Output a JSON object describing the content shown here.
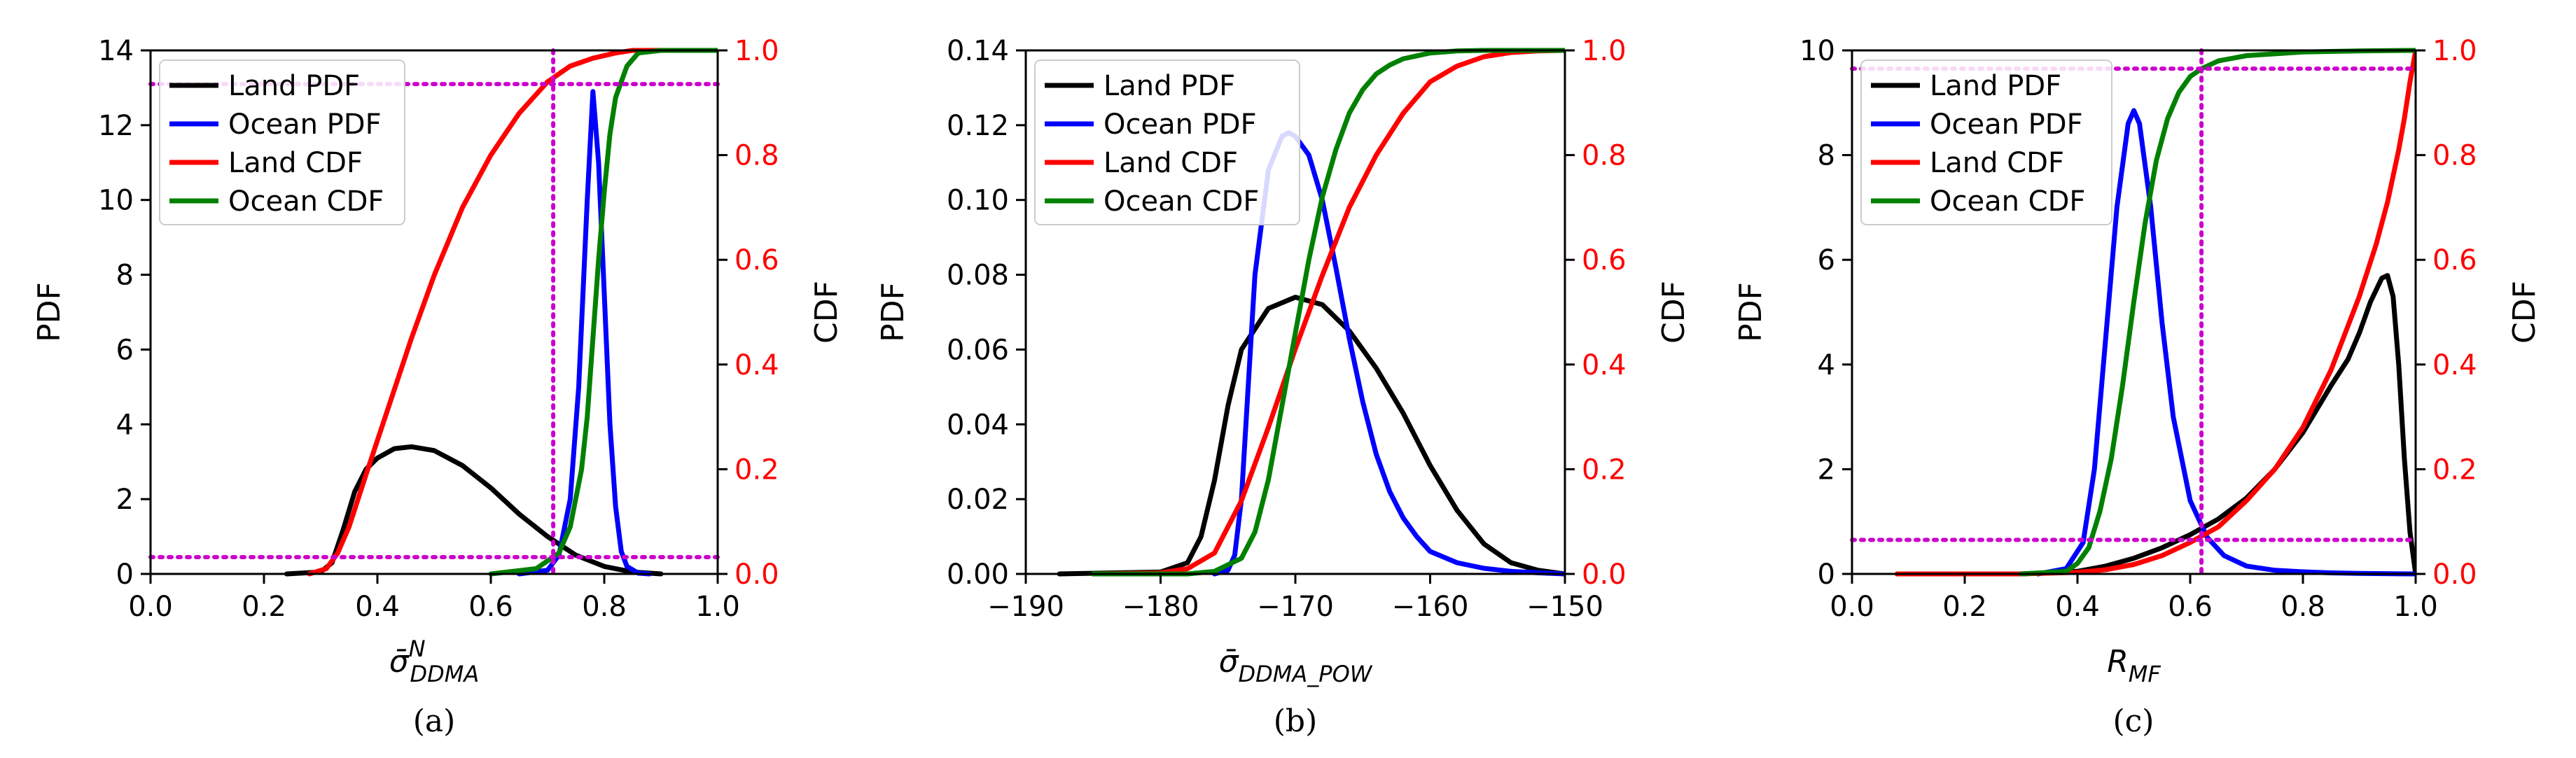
{
  "chart_data": [
    {
      "type": "line",
      "caption": "(a)",
      "xlabel": "σ̄",
      "xlabel_sup": "N",
      "xlabel_sub": "DDMA",
      "ylabel_left": "PDF",
      "ylabel_right": "CDF",
      "xlim": [
        0,
        1
      ],
      "ylim_left": [
        0,
        14
      ],
      "ylim_right": [
        0,
        1
      ],
      "xticks": [
        "0.0",
        "0.2",
        "0.4",
        "0.6",
        "0.8",
        "1.0"
      ],
      "xtick_values": [
        0,
        0.2,
        0.4,
        0.6,
        0.8,
        1.0
      ],
      "yticks_left": [
        "0",
        "2",
        "4",
        "6",
        "8",
        "10",
        "12",
        "14"
      ],
      "ytick_values_left": [
        0,
        2,
        4,
        6,
        8,
        10,
        12,
        14
      ],
      "yticks_right": [
        "0.0",
        "0.2",
        "0.4",
        "0.6",
        "0.8",
        "1.0"
      ],
      "ytick_values_right": [
        0,
        0.2,
        0.4,
        0.6,
        0.8,
        1.0
      ],
      "legend": [
        "Land PDF",
        "Ocean PDF",
        "Land CDF",
        "Ocean CDF"
      ],
      "series": [
        {
          "name": "Land PDF",
          "axis": "left",
          "color": "#000000",
          "x": [
            0.24,
            0.3,
            0.32,
            0.34,
            0.36,
            0.38,
            0.4,
            0.43,
            0.46,
            0.5,
            0.55,
            0.6,
            0.65,
            0.7,
            0.75,
            0.8,
            0.85,
            0.9
          ],
          "y": [
            0.0,
            0.05,
            0.3,
            1.2,
            2.2,
            2.8,
            3.1,
            3.35,
            3.4,
            3.3,
            2.9,
            2.3,
            1.6,
            1.0,
            0.5,
            0.2,
            0.05,
            0.0
          ]
        },
        {
          "name": "Ocean PDF",
          "axis": "left",
          "color": "#0000ff",
          "x": [
            0.65,
            0.7,
            0.72,
            0.74,
            0.755,
            0.77,
            0.78,
            0.79,
            0.8,
            0.81,
            0.82,
            0.83,
            0.84,
            0.86,
            0.88
          ],
          "y": [
            0.0,
            0.1,
            0.5,
            2.0,
            5.0,
            10.0,
            12.9,
            11.0,
            7.5,
            4.0,
            1.8,
            0.6,
            0.2,
            0.02,
            0.0
          ]
        },
        {
          "name": "Land CDF",
          "axis": "right",
          "color": "#ff0000",
          "x": [
            0.28,
            0.31,
            0.33,
            0.35,
            0.38,
            0.42,
            0.46,
            0.5,
            0.55,
            0.6,
            0.65,
            0.7,
            0.74,
            0.78,
            0.82,
            0.85,
            0.88,
            1.0
          ],
          "y": [
            0.0,
            0.01,
            0.04,
            0.09,
            0.19,
            0.32,
            0.45,
            0.57,
            0.7,
            0.8,
            0.88,
            0.94,
            0.97,
            0.985,
            0.995,
            1.0,
            1.0,
            1.0
          ]
        },
        {
          "name": "Ocean CDF",
          "axis": "right",
          "color": "#008000",
          "x": [
            0.6,
            0.68,
            0.72,
            0.74,
            0.76,
            0.77,
            0.78,
            0.79,
            0.8,
            0.81,
            0.82,
            0.84,
            0.86,
            0.9,
            1.0
          ],
          "y": [
            0.0,
            0.01,
            0.04,
            0.09,
            0.2,
            0.3,
            0.45,
            0.6,
            0.73,
            0.84,
            0.91,
            0.97,
            0.995,
            1.0,
            1.0
          ]
        }
      ],
      "reference_lines": [
        {
          "orientation": "vertical",
          "axis": "x",
          "value": 0.71
        },
        {
          "orientation": "horizontal",
          "axis": "left",
          "value": 13.1
        },
        {
          "orientation": "horizontal",
          "axis": "left",
          "value": 0.45
        }
      ]
    },
    {
      "type": "line",
      "caption": "(b)",
      "xlabel": "σ̄",
      "xlabel_sup": "",
      "xlabel_sub": "DDMA_POW",
      "ylabel_left": "PDF",
      "ylabel_right": "CDF",
      "xlim": [
        -190,
        -150
      ],
      "ylim_left": [
        0,
        0.14
      ],
      "ylim_right": [
        0,
        1
      ],
      "xticks": [
        "−190",
        "−180",
        "−170",
        "−160",
        "−150"
      ],
      "xtick_values": [
        -190,
        -180,
        -170,
        -160,
        -150
      ],
      "yticks_left": [
        "0.00",
        "0.02",
        "0.04",
        "0.06",
        "0.08",
        "0.10",
        "0.12",
        "0.14"
      ],
      "ytick_values_left": [
        0,
        0.02,
        0.04,
        0.06,
        0.08,
        0.1,
        0.12,
        0.14
      ],
      "yticks_right": [
        "0.0",
        "0.2",
        "0.4",
        "0.6",
        "0.8",
        "1.0"
      ],
      "ytick_values_right": [
        0,
        0.2,
        0.4,
        0.6,
        0.8,
        1.0
      ],
      "legend": [
        "Land PDF",
        "Ocean PDF",
        "Land CDF",
        "Ocean CDF"
      ],
      "series": [
        {
          "name": "Land PDF",
          "axis": "left",
          "color": "#000000",
          "x": [
            -187.5,
            -180,
            -178,
            -177,
            -176,
            -175,
            -174,
            -172,
            -170,
            -168,
            -166,
            -164,
            -162,
            -160,
            -158,
            -156,
            -154,
            -152,
            -150
          ],
          "y": [
            0.0,
            0.0005,
            0.003,
            0.01,
            0.025,
            0.045,
            0.06,
            0.071,
            0.074,
            0.072,
            0.065,
            0.055,
            0.043,
            0.029,
            0.017,
            0.008,
            0.003,
            0.001,
            0.0
          ]
        },
        {
          "name": "Ocean PDF",
          "axis": "left",
          "color": "#0000ff",
          "x": [
            -176,
            -175,
            -174.5,
            -174,
            -173.5,
            -173,
            -172,
            -171,
            -170.5,
            -170,
            -169,
            -168,
            -167,
            -166,
            -165,
            -164,
            -163,
            -162,
            -161,
            -160,
            -158,
            -156,
            -154,
            -152,
            -150
          ],
          "y": [
            0.0,
            0.001,
            0.005,
            0.02,
            0.05,
            0.08,
            0.108,
            0.117,
            0.118,
            0.117,
            0.112,
            0.1,
            0.082,
            0.063,
            0.046,
            0.032,
            0.022,
            0.015,
            0.01,
            0.006,
            0.003,
            0.0015,
            0.0007,
            0.0003,
            0.0
          ]
        },
        {
          "name": "Land CDF",
          "axis": "right",
          "color": "#ff0000",
          "x": [
            -185,
            -180,
            -178,
            -176,
            -174,
            -172,
            -170,
            -168,
            -166,
            -164,
            -162,
            -160,
            -158,
            -156,
            -154,
            -152,
            -150
          ],
          "y": [
            0.0,
            0.002,
            0.01,
            0.04,
            0.14,
            0.28,
            0.43,
            0.57,
            0.7,
            0.8,
            0.88,
            0.94,
            0.97,
            0.988,
            0.996,
            0.999,
            1.0
          ]
        },
        {
          "name": "Ocean CDF",
          "axis": "right",
          "color": "#008000",
          "x": [
            -185,
            -178,
            -176,
            -174,
            -173,
            -172,
            -171,
            -170,
            -169,
            -168,
            -167,
            -166,
            -165,
            -164,
            -163,
            -162,
            -160,
            -158,
            -156,
            -150
          ],
          "y": [
            0.0,
            0.0,
            0.005,
            0.03,
            0.08,
            0.18,
            0.32,
            0.46,
            0.6,
            0.72,
            0.81,
            0.88,
            0.925,
            0.955,
            0.972,
            0.984,
            0.995,
            0.999,
            1.0,
            1.0
          ]
        }
      ],
      "reference_lines": []
    },
    {
      "type": "line",
      "caption": "(c)",
      "xlabel": "R",
      "xlabel_sup": "",
      "xlabel_sub": "MF",
      "ylabel_left": "PDF",
      "ylabel_right": "CDF",
      "xlim": [
        0,
        1
      ],
      "ylim_left": [
        0,
        10
      ],
      "ylim_right": [
        0,
        1
      ],
      "xticks": [
        "0.0",
        "0.2",
        "0.4",
        "0.6",
        "0.8",
        "1.0"
      ],
      "xtick_values": [
        0,
        0.2,
        0.4,
        0.6,
        0.8,
        1.0
      ],
      "yticks_left": [
        "0",
        "2",
        "4",
        "6",
        "8",
        "10"
      ],
      "ytick_values_left": [
        0,
        2,
        4,
        6,
        8,
        10
      ],
      "yticks_right": [
        "0.0",
        "0.2",
        "0.4",
        "0.6",
        "0.8",
        "1.0"
      ],
      "ytick_values_right": [
        0,
        0.2,
        0.4,
        0.6,
        0.8,
        1.0
      ],
      "legend": [
        "Land PDF",
        "Ocean PDF",
        "Land CDF",
        "Ocean CDF"
      ],
      "series": [
        {
          "name": "Land PDF",
          "axis": "left",
          "color": "#000000",
          "x": [
            0.08,
            0.3,
            0.4,
            0.45,
            0.5,
            0.55,
            0.6,
            0.65,
            0.7,
            0.75,
            0.8,
            0.85,
            0.88,
            0.9,
            0.92,
            0.94,
            0.95,
            0.96,
            0.97,
            0.98,
            0.99,
            1.0
          ],
          "y": [
            0.0,
            0.0,
            0.05,
            0.15,
            0.3,
            0.5,
            0.75,
            1.05,
            1.45,
            2.0,
            2.7,
            3.6,
            4.1,
            4.6,
            5.2,
            5.65,
            5.7,
            5.3,
            4.0,
            2.2,
            0.8,
            0.0
          ]
        },
        {
          "name": "Ocean PDF",
          "axis": "left",
          "color": "#0000ff",
          "x": [
            0.33,
            0.38,
            0.41,
            0.43,
            0.45,
            0.47,
            0.49,
            0.5,
            0.51,
            0.53,
            0.55,
            0.57,
            0.6,
            0.63,
            0.66,
            0.7,
            0.75,
            0.8,
            0.85,
            0.9,
            1.0
          ],
          "y": [
            0.0,
            0.1,
            0.6,
            2.0,
            4.5,
            7.0,
            8.6,
            8.85,
            8.6,
            7.0,
            4.8,
            3.0,
            1.4,
            0.7,
            0.35,
            0.15,
            0.07,
            0.04,
            0.02,
            0.01,
            0.0
          ]
        },
        {
          "name": "Land CDF",
          "axis": "right",
          "color": "#ff0000",
          "x": [
            0.08,
            0.3,
            0.4,
            0.45,
            0.5,
            0.55,
            0.6,
            0.65,
            0.7,
            0.75,
            0.8,
            0.85,
            0.9,
            0.93,
            0.95,
            0.97,
            0.98,
            0.99,
            1.0
          ],
          "y": [
            0.0,
            0.0,
            0.003,
            0.008,
            0.018,
            0.035,
            0.06,
            0.09,
            0.14,
            0.2,
            0.28,
            0.39,
            0.53,
            0.63,
            0.71,
            0.81,
            0.87,
            0.94,
            1.0
          ]
        },
        {
          "name": "Ocean CDF",
          "axis": "right",
          "color": "#008000",
          "x": [
            0.3,
            0.38,
            0.4,
            0.42,
            0.44,
            0.46,
            0.48,
            0.5,
            0.52,
            0.54,
            0.56,
            0.58,
            0.6,
            0.62,
            0.65,
            0.7,
            0.8,
            0.9,
            1.0
          ],
          "y": [
            0.0,
            0.005,
            0.02,
            0.05,
            0.12,
            0.22,
            0.36,
            0.52,
            0.67,
            0.79,
            0.87,
            0.92,
            0.95,
            0.965,
            0.98,
            0.99,
            0.997,
            0.999,
            1.0
          ]
        }
      ],
      "reference_lines": [
        {
          "orientation": "vertical",
          "axis": "x",
          "value": 0.62
        },
        {
          "orientation": "horizontal",
          "axis": "left",
          "value": 9.65
        },
        {
          "orientation": "horizontal",
          "axis": "left",
          "value": 0.65
        }
      ]
    }
  ]
}
